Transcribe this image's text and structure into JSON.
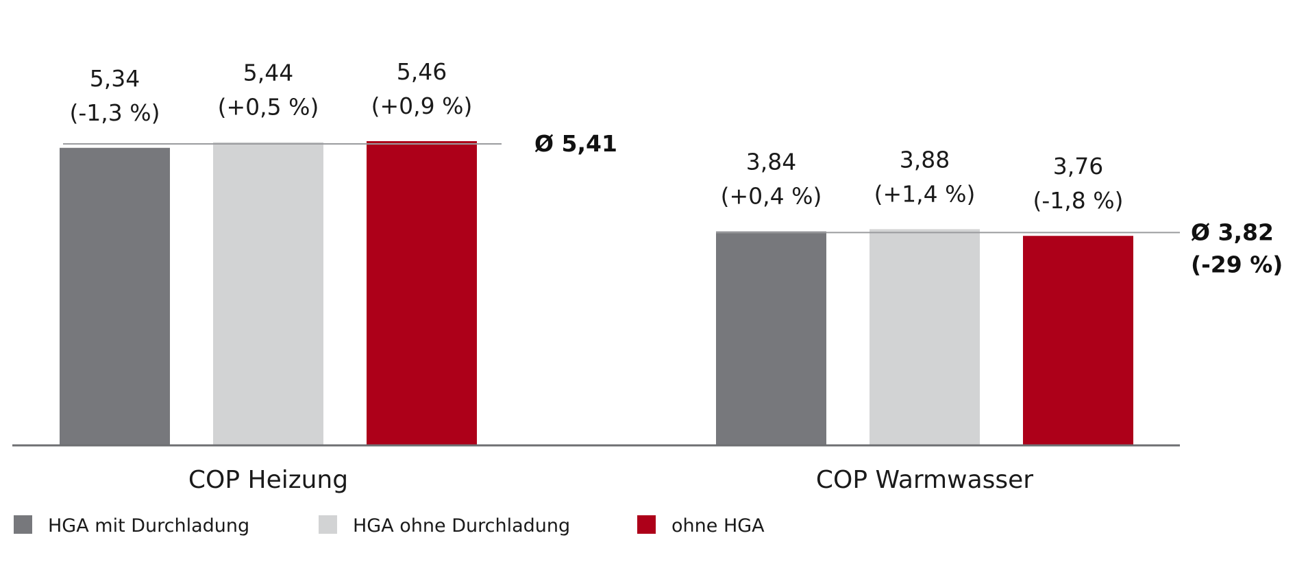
{
  "chart_data": {
    "type": "bar",
    "categories": [
      "COP Heizung",
      "COP Warmwasser"
    ],
    "series": [
      {
        "name": "HGA mit Durchladung",
        "color": "#77787c",
        "values": [
          5.34,
          3.84
        ],
        "labels": [
          "5,34",
          "3,84"
        ],
        "deltas": [
          "(-1,3 %)",
          "(+0,4 %)"
        ]
      },
      {
        "name": "HGA ohne Durchladung",
        "color": "#d2d3d4",
        "values": [
          5.44,
          3.88
        ],
        "labels": [
          "5,44",
          "3,88"
        ],
        "deltas": [
          "(+0,5 %)",
          "(+1,4 %)"
        ]
      },
      {
        "name": "ohne HGA",
        "color": "#ad0019",
        "values": [
          5.46,
          3.76
        ],
        "labels": [
          "5,46",
          "3,76"
        ],
        "deltas": [
          "(+0,9 %)",
          "(-1,8 %)"
        ]
      }
    ],
    "averages": [
      {
        "value": 5.41,
        "label": "Ø 5,41",
        "sub": ""
      },
      {
        "value": 3.82,
        "label": "Ø 3,82",
        "sub": "(-29 %)"
      }
    ],
    "ylim": [
      0,
      5.5
    ],
    "grid": false,
    "legend_position": "bottom-left"
  }
}
